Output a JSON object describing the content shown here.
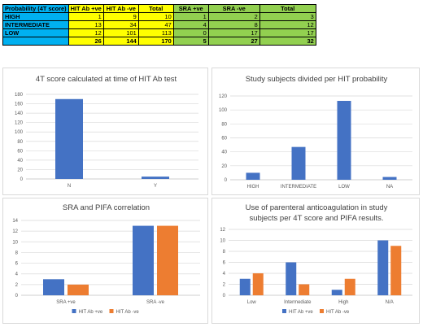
{
  "table": {
    "headers": [
      "Probability (4T score)",
      "HIT Ab +ve",
      "HIT Ab -ve",
      "Total",
      "SRA +ve",
      "SRA -ve",
      "Total"
    ],
    "rows": [
      {
        "label": "HIGH",
        "values": [
          "1",
          "9",
          "10",
          "1",
          "2",
          "3"
        ]
      },
      {
        "label": "INTERMEDIATE",
        "values": [
          "13",
          "34",
          "47",
          "4",
          "8",
          "12"
        ]
      },
      {
        "label": "LOW",
        "values": [
          "12",
          "101",
          "113",
          "0",
          "17",
          "17"
        ]
      },
      {
        "label": "",
        "values": [
          "26",
          "144",
          "170",
          "5",
          "27",
          "32"
        ]
      }
    ]
  },
  "colors": {
    "blue": "#4472c4",
    "orange": "#ed7d31",
    "cyan": "#00b0f0",
    "yellow": "#ffff00",
    "green": "#92d050",
    "grid": "#d9d9d9"
  },
  "chart_data": [
    {
      "type": "bar",
      "title": "4T score calculated at time of HIT Ab test",
      "categories": [
        "N",
        "Y"
      ],
      "series": [
        {
          "values": [
            170,
            5
          ],
          "color": "#4472c4"
        }
      ],
      "ylim": [
        0,
        180
      ],
      "yticks": [
        0,
        20,
        40,
        60,
        80,
        100,
        120,
        140,
        160,
        180
      ],
      "grid": true,
      "legend": "none"
    },
    {
      "type": "bar",
      "title": "Study subjects divided per HIT probability",
      "categories": [
        "HIGH",
        "INTERMEDIATE",
        "LOW",
        "NA"
      ],
      "series": [
        {
          "values": [
            10,
            47,
            113,
            4
          ],
          "color": "#4472c4"
        }
      ],
      "ylim": [
        0,
        120
      ],
      "yticks": [
        0,
        20,
        40,
        60,
        80,
        100,
        120
      ],
      "grid": true,
      "legend": "none"
    },
    {
      "type": "bar",
      "title": "SRA and PIFA correlation",
      "categories": [
        "SRA +ve",
        "SRA -ve"
      ],
      "series": [
        {
          "name": "HIT Ab +ve",
          "values": [
            3,
            13
          ],
          "color": "#4472c4"
        },
        {
          "name": "HIT Ab -ve",
          "values": [
            2,
            13
          ],
          "color": "#ed7d31"
        }
      ],
      "ylim": [
        0,
        14
      ],
      "yticks": [
        0,
        2,
        4,
        6,
        8,
        10,
        12,
        14
      ],
      "grid": true,
      "legend": "bottom"
    },
    {
      "type": "bar",
      "title": "Use of parenteral anticoagulation in study subjects per 4T score and PIFA results.",
      "title_lines": [
        "Use of parenteral anticoagulation in study",
        "subjects per 4T score and PIFA results."
      ],
      "categories": [
        "Low",
        "Intermediate",
        "High",
        "N/A"
      ],
      "series": [
        {
          "name": "HIT Ab +ve",
          "values": [
            3,
            6,
            1,
            10
          ],
          "color": "#4472c4"
        },
        {
          "name": "HIT Ab -ve",
          "values": [
            4,
            2,
            3,
            9
          ],
          "color": "#ed7d31"
        }
      ],
      "ylim": [
        0,
        12
      ],
      "yticks": [
        0,
        2,
        4,
        6,
        8,
        10,
        12
      ],
      "grid": true,
      "legend": "bottom"
    }
  ]
}
